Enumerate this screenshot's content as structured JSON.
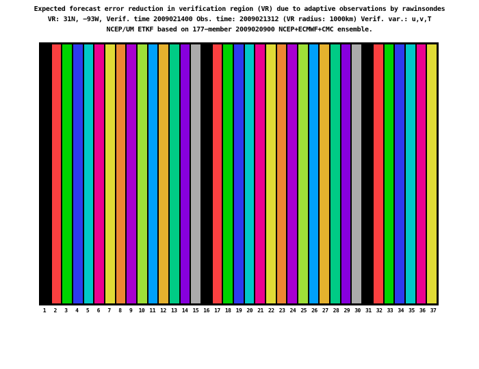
{
  "page": {
    "background": "#ffffff",
    "title_lines": [
      "Expected forecast error reduction in verification region (VR) due to adaptive observations by rawinsondes",
      "VR: 31N, −93W, Verif. time 2009021400 Obs. time: 2009021312 (VR radius: 1000km)  Verif. var.: u,v,T",
      "NCEP/UM ETKF based on 177−member 2009020900 NCEP+ECMWF+CMC ensemble."
    ]
  },
  "chart_data": {
    "type": "bar",
    "title": "Expected forecast error reduction in verification region (VR) due to adaptive observations by rawinsondes",
    "subtitle": "VR: 31N, −93W, Verif. time 2009021400 Obs. time: 2009021312 (VR radius: 1000km)  Verif. var.: u,v,T",
    "subtitle2": "NCEP/UM ETKF based on 177−member 2009020900 NCEP+ECMWF+CMC ensemble.",
    "xlabel": "",
    "ylabel": "",
    "grid": false,
    "legend": false,
    "y_axis_ticks_visible": false,
    "value_note": "No y-axis scale is drawn; all 37 bars span the full height of the plot box",
    "categories": [
      1,
      2,
      3,
      4,
      5,
      6,
      7,
      8,
      9,
      10,
      11,
      12,
      13,
      14,
      15,
      16,
      17,
      18,
      19,
      20,
      21,
      22,
      23,
      24,
      25,
      26,
      27,
      28,
      29,
      30,
      31,
      32,
      33,
      34,
      35,
      36,
      37
    ],
    "values": [
      1,
      1,
      1,
      1,
      1,
      1,
      1,
      1,
      1,
      1,
      1,
      1,
      1,
      1,
      1,
      1,
      1,
      1,
      1,
      1,
      1,
      1,
      1,
      1,
      1,
      1,
      1,
      1,
      1,
      1,
      1,
      1,
      1,
      1,
      1,
      1,
      1
    ],
    "color_cycle": [
      "#000000",
      "#FA4040",
      "#00D300",
      "#2D3BEF",
      "#00C8C8",
      "#EB0190",
      "#E0DB36",
      "#ED8732",
      "#A800CF",
      "#9EDF38",
      "#00A1FA",
      "#E5B12E",
      "#00CB85",
      "#8700DE",
      "#ABABAB"
    ],
    "bar_colors": [
      "#000000",
      "#FA4040",
      "#00D300",
      "#2D3BEF",
      "#00C8C8",
      "#EB0190",
      "#E0DB36",
      "#ED8732",
      "#A800CF",
      "#9EDF38",
      "#00A1FA",
      "#E5B12E",
      "#00CB85",
      "#8700DE",
      "#ABABAB",
      "#000000",
      "#FA4040",
      "#00D300",
      "#2D3BEF",
      "#00C8C8",
      "#EB0190",
      "#E0DB36",
      "#ED8732",
      "#A800CF",
      "#9EDF38",
      "#00A1FA",
      "#E5B12E",
      "#00CB85",
      "#8700DE",
      "#ABABAB",
      "#000000",
      "#FA4040",
      "#00D300",
      "#2D3BEF",
      "#00C8C8",
      "#EB0190",
      "#E0DB36"
    ],
    "frame_color": "#000000",
    "gap_color": "#000000",
    "plot_background": "#000000"
  }
}
